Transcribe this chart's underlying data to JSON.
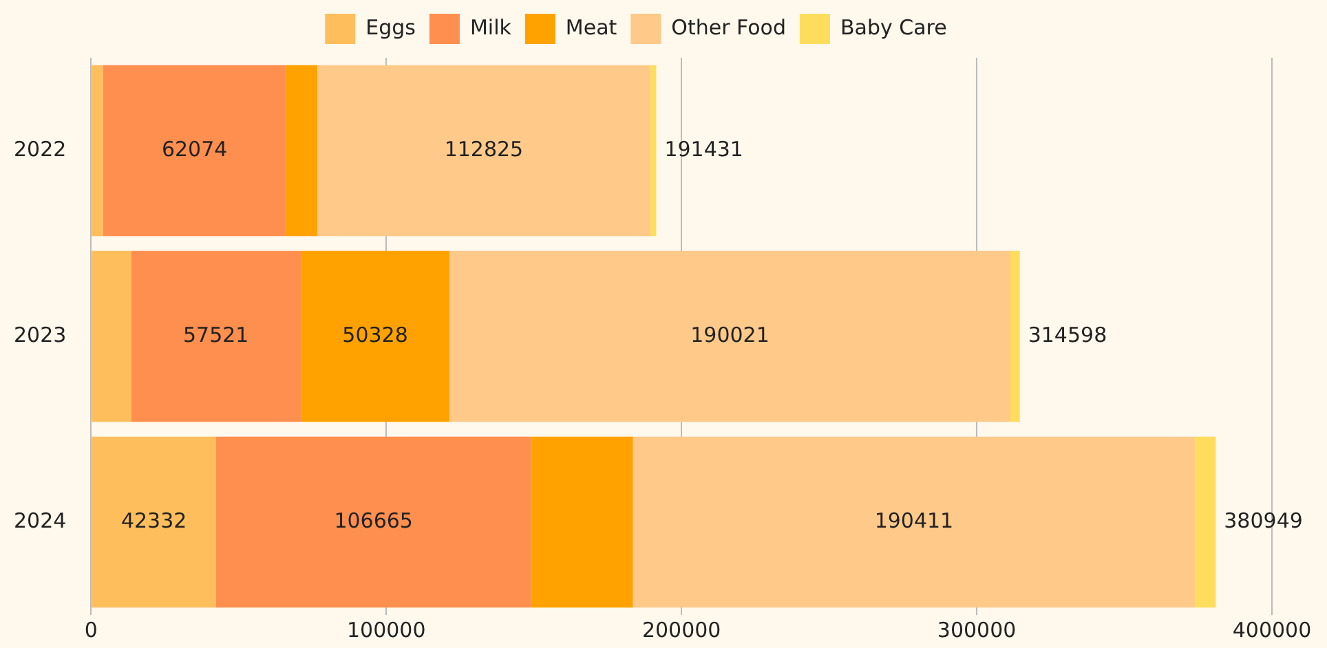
{
  "chart_data": {
    "type": "bar",
    "orientation": "horizontal",
    "stacked": true,
    "categories": [
      "2022",
      "2023",
      "2024"
    ],
    "series": [
      {
        "name": "Eggs",
        "color": "#ffbe5c",
        "values": [
          4000,
          13528,
          42332
        ],
        "value_labels": [
          null,
          null,
          "42332"
        ]
      },
      {
        "name": "Milk",
        "color": "#ff8f4f",
        "values": [
          62074,
          57521,
          106665
        ],
        "value_labels": [
          "62074",
          "57521",
          "106665"
        ]
      },
      {
        "name": "Meat",
        "color": "#ffa200",
        "values": [
          10532,
          50328,
          34541
        ],
        "value_labels": [
          null,
          "50328",
          null
        ]
      },
      {
        "name": "Other Food",
        "color": "#ffc98a",
        "values": [
          112825,
          190021,
          190411
        ],
        "value_labels": [
          "112825",
          "190021",
          "190411"
        ]
      },
      {
        "name": "Baby Care",
        "color": "#ffdd5c",
        "values": [
          2000,
          3200,
          7000
        ],
        "value_labels": [
          null,
          null,
          null
        ]
      }
    ],
    "totals": [
      "191431",
      "314598",
      "380949"
    ],
    "xlim": [
      0,
      400000
    ],
    "xticks": [
      0,
      100000,
      200000,
      300000,
      400000
    ],
    "grid": "x",
    "legend": "top"
  }
}
